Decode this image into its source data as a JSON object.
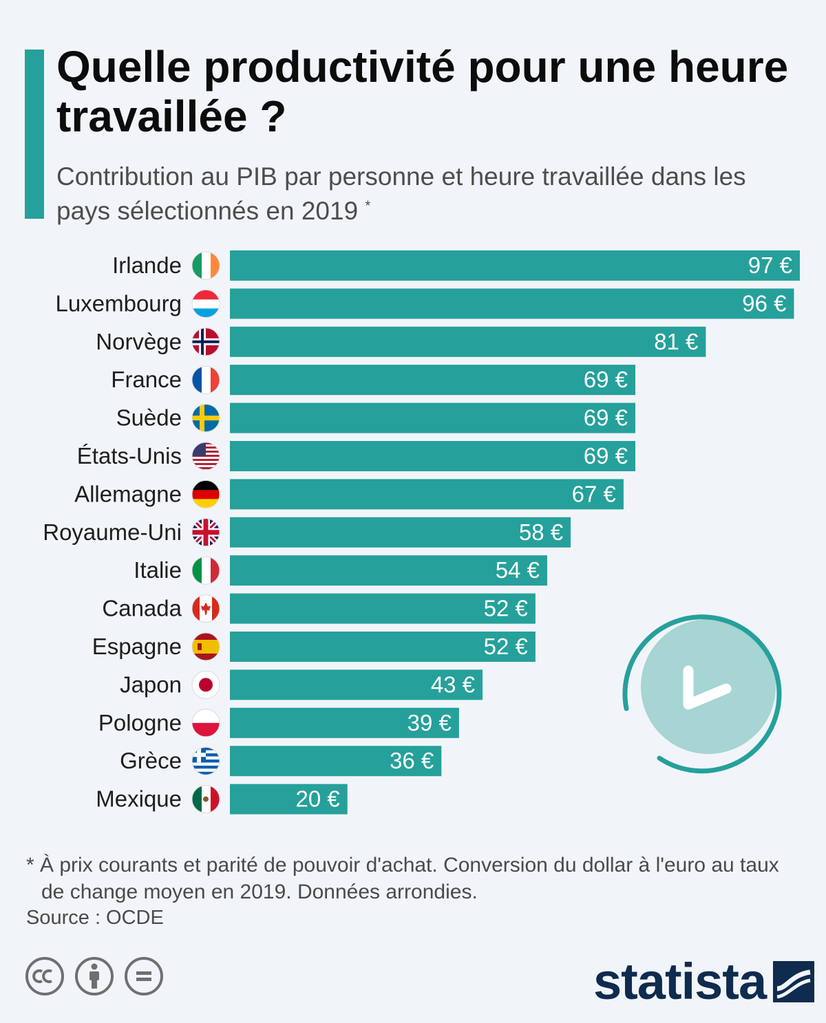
{
  "header": {
    "title": "Quelle productivité pour une heure travaillée ?",
    "subtitle": "Contribution au PIB par personne et heure travaillée dans les pays sélectionnés en 2019",
    "subtitle_marker": "*"
  },
  "chart_data": {
    "type": "bar",
    "orientation": "horizontal",
    "categories": [
      "Irlande",
      "Luxembourg",
      "Norvège",
      "France",
      "Suède",
      "États-Unis",
      "Allemagne",
      "Royaume-Uni",
      "Italie",
      "Canada",
      "Espagne",
      "Japon",
      "Pologne",
      "Grèce",
      "Mexique"
    ],
    "values": [
      97,
      96,
      81,
      69,
      69,
      69,
      67,
      58,
      54,
      52,
      52,
      43,
      39,
      36,
      20
    ],
    "value_labels": [
      "97 €",
      "96 €",
      "81 €",
      "69 €",
      "69 €",
      "69 €",
      "67 €",
      "58 €",
      "54 €",
      "52 €",
      "52 €",
      "43 €",
      "39 €",
      "36 €",
      "20 €"
    ],
    "flags": [
      "flag-ireland-icon",
      "flag-luxembourg-icon",
      "flag-norway-icon",
      "flag-france-icon",
      "flag-sweden-icon",
      "flag-usa-icon",
      "flag-germany-icon",
      "flag-uk-icon",
      "flag-italy-icon",
      "flag-canada-icon",
      "flag-spain-icon",
      "flag-japan-icon",
      "flag-poland-icon",
      "flag-greece-icon",
      "flag-mexico-icon"
    ],
    "xlim": [
      0,
      97
    ],
    "grid": false,
    "bar_color": "#26a09b"
  },
  "colors": {
    "accent": "#26a09b",
    "background": "#f1f5f9",
    "clock_circle": "#a6d5d3",
    "brand": "#0f2b4e"
  },
  "icons": {
    "decoration": "clock-icon",
    "license": [
      "cc-icon",
      "attribution-icon",
      "no-derivatives-icon"
    ]
  },
  "footer": {
    "footnote": "* À prix courants et parité de pouvoir d'achat. Conversion du dollar à l'euro au taux de change moyen en 2019. Données arrondies.",
    "source": "Source : OCDE",
    "brand": "statista"
  }
}
